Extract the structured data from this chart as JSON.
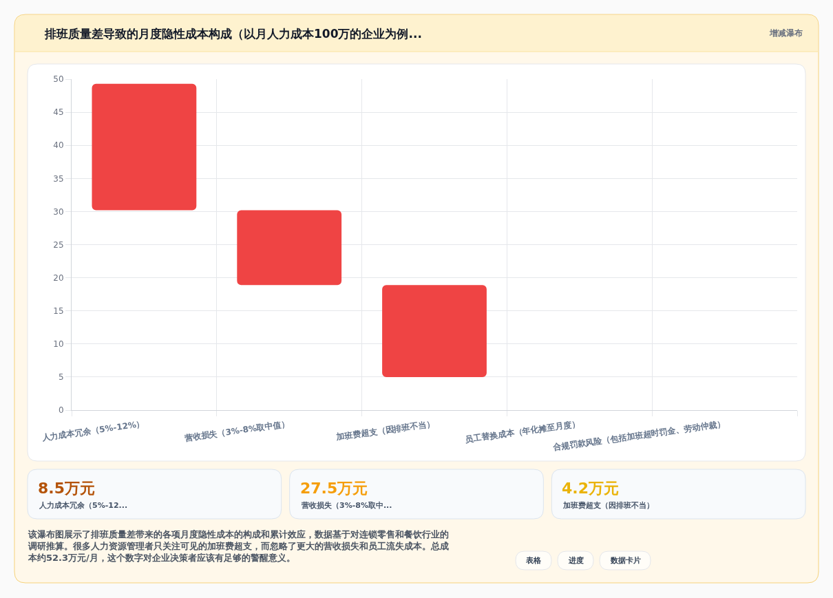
{
  "chart_data": [
    {
      "type": "bar",
      "title": "排班质量差导致的月度隐性成本构成（以月人力成本100万的企业为例...",
      "categories": [
        "人力成本冗余（5%-12%）",
        "营收损失（3%-8%取中值）",
        "加班费超支（因排班不当）",
        "员工替换成本（年化摊至月度）",
        "合规罚款风险（包括加班超时罚金、劳动仲裁）"
      ],
      "values": [
        19.1,
        11.3,
        13.9,
        null,
        null
      ],
      "base": [
        30.2,
        18.9,
        5.0,
        null,
        null
      ],
      "color": "#ef4444",
      "ylim": [
        0,
        50
      ],
      "yticks": [
        0,
        5,
        10,
        15,
        20,
        25,
        30,
        35,
        40,
        45,
        50
      ],
      "grid": true,
      "annotations": [
        "增减瀑布",
        "该瀑布图展示了排班质量差带来的各项月度隐性成本的构成和累计效应，数据基于对连锁零售和餐饮行业的调研推算。很多人力资源管理者只关注可见的加班费超支，而忽略了更大的营收损失和员工流失成本。总成本约52.3万元/月，这个数字对企业决策者应该有足够的警醒意义。",
        "表格",
        "进度",
        "数据卡片"
      ]
    },
    {
      "type": "other",
      "categories": [
        "人力成本冗余（5%-12...",
        "营收损失（3%-8%取中...",
        "加班费超支（因排班不当）"
      ],
      "value_labels": [
        "8.5万元",
        "27.5万元",
        "4.2万元"
      ]
    }
  ]
}
